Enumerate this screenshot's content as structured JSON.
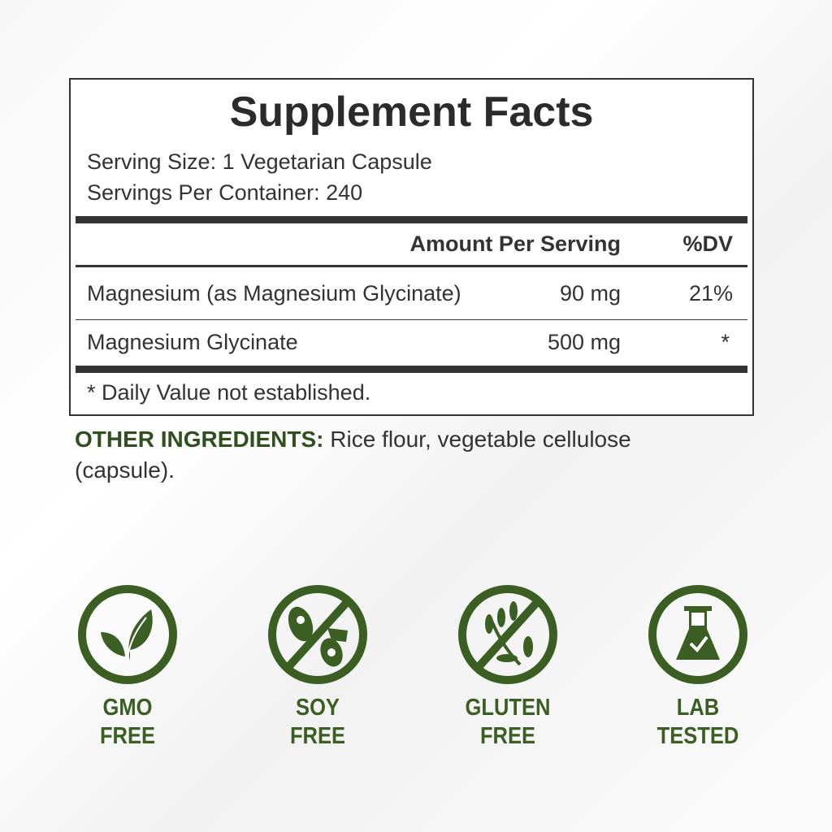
{
  "facts": {
    "title": "Supplement Facts",
    "serving_size": "Serving Size: 1 Vegetarian Capsule",
    "servings_per_container": "Servings Per Container: 240",
    "header_amount": "Amount Per Serving",
    "header_dv": "%DV",
    "rows": [
      {
        "name": "Magnesium (as Magnesium Glycinate)",
        "amount": "90 mg",
        "dv": "21%"
      },
      {
        "name": "Magnesium Glycinate",
        "amount": "500 mg",
        "dv": "*"
      }
    ],
    "footnote": "* Daily Value not established."
  },
  "other_ingredients": {
    "label": "OTHER INGREDIENTS:",
    "text": " Rice flour, vegetable cellulose (capsule)."
  },
  "badges": [
    {
      "icon": "leaf-icon",
      "line1": "GMO",
      "line2": "FREE"
    },
    {
      "icon": "no-soy-icon",
      "line1": "SOY",
      "line2": "FREE"
    },
    {
      "icon": "no-wheat-icon",
      "line1": "GLUTEN",
      "line2": "FREE"
    },
    {
      "icon": "flask-check-icon",
      "line1": "LAB",
      "line2": "TESTED"
    }
  ],
  "colors": {
    "brand_green": "#3b5e23",
    "text": "#2b2b2b"
  }
}
